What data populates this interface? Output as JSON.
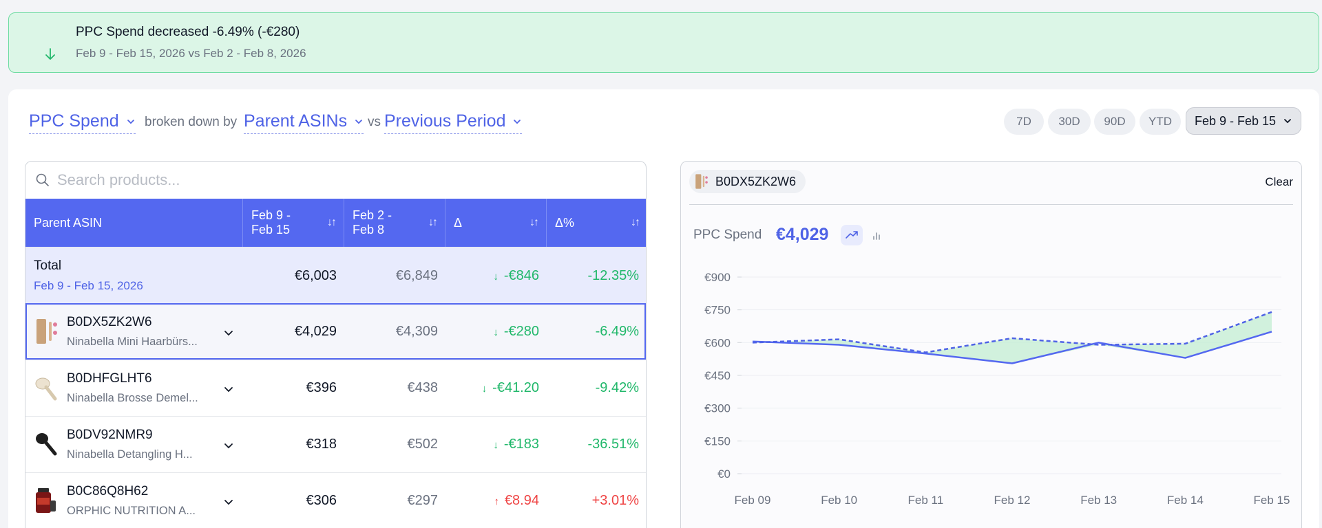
{
  "banner": {
    "title": "PPC Spend decreased -6.49% (-€280)",
    "subtitle": "Feb 9 - Feb 15, 2026 vs Feb 2 - Feb 8, 2026"
  },
  "query": {
    "metric": "PPC Spend",
    "broken_down_by": "broken down by",
    "dimension": "Parent ASINs",
    "vs": "vs",
    "comparison": "Previous Period"
  },
  "periods": [
    "7D",
    "30D",
    "90D",
    "YTD"
  ],
  "active_period": "Feb 9 - Feb 15",
  "search": {
    "placeholder": "Search products..."
  },
  "table": {
    "headers": {
      "asin": "Parent ASIN",
      "current": "Feb 9 - Feb 15",
      "previous": "Feb 2 - Feb 8",
      "delta": "Δ",
      "delta_pct": "Δ%"
    },
    "total": {
      "label": "Total",
      "range": "Feb 9 - Feb 15, 2026",
      "current": "€6,003",
      "previous": "€6,849",
      "delta": "-€846",
      "delta_pct": "-12.35%"
    },
    "rows": [
      {
        "asin": "B0DX5ZK2W6",
        "name": "Ninabella Mini Haarbürs...",
        "current": "€4,029",
        "previous": "€4,309",
        "delta": "-€280",
        "delta_pct": "-6.49%",
        "direction": "down"
      },
      {
        "asin": "B0DHFGLHT6",
        "name": "Ninabella Brosse Demel...",
        "current": "€396",
        "previous": "€438",
        "delta": "-€41.20",
        "delta_pct": "-9.42%",
        "direction": "down"
      },
      {
        "asin": "B0DV92NMR9",
        "name": "Ninabella Detangling H...",
        "current": "€318",
        "previous": "€502",
        "delta": "-€183",
        "delta_pct": "-36.51%",
        "direction": "down"
      },
      {
        "asin": "B0C86Q8H62",
        "name": "ORPHIC NUTRITION A...",
        "current": "€306",
        "previous": "€297",
        "delta": "€8.94",
        "delta_pct": "+3.01%",
        "direction": "up"
      }
    ]
  },
  "chart_panel": {
    "chip_label": "B0DX5ZK2W6",
    "clear_label": "Clear",
    "metric_label": "PPC Spend",
    "metric_value": "€4,029"
  },
  "chart_data": {
    "type": "line",
    "x": [
      "Feb 09",
      "Feb 10",
      "Feb 11",
      "Feb 12",
      "Feb 13",
      "Feb 14",
      "Feb 15"
    ],
    "yticks": [
      "€0",
      "€150",
      "€300",
      "€450",
      "€600",
      "€750",
      "€900"
    ],
    "ylim": [
      0,
      900
    ],
    "series": [
      {
        "style": "solid",
        "color": "#5468f0",
        "values": [
          605,
          590,
          550,
          505,
          600,
          530,
          650
        ]
      },
      {
        "style": "dashed",
        "color": "#4f63e6",
        "values": [
          600,
          615,
          555,
          620,
          590,
          595,
          740
        ]
      }
    ],
    "fill_color": "#c9efd7",
    "grid": true
  }
}
